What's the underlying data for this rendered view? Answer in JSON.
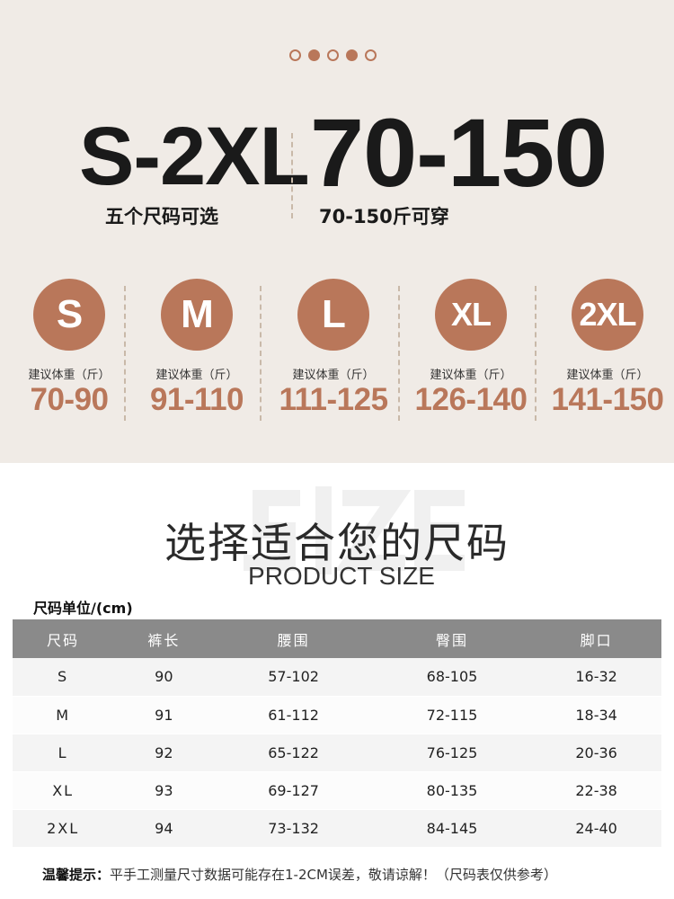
{
  "colors": {
    "accent": "#b9775a",
    "background": "#f0ebe6",
    "table_header": "#8a8a8a"
  },
  "carousel": {
    "count": 5,
    "active": [
      1,
      3
    ]
  },
  "hero": {
    "size_range": "S-2XL",
    "size_caption": "五个尺码可选",
    "weight_range": "70-150",
    "weight_caption": "70-150斤可穿"
  },
  "sizes": [
    {
      "size": "S",
      "label": "建议体重（斤）",
      "weight": "70-90"
    },
    {
      "size": "M",
      "label": "建议体重（斤）",
      "weight": "91-110"
    },
    {
      "size": "L",
      "label": "建议体重（斤）",
      "weight": "111-125"
    },
    {
      "size": "XL",
      "label": "建议体重（斤）",
      "weight": "126-140"
    },
    {
      "size": "2XL",
      "label": "建议体重（斤）",
      "weight": "141-150"
    }
  ],
  "chart_title": {
    "watermark": "SIZE",
    "title": "选择适合您的尺码",
    "subtitle": "PRODUCT SIZE"
  },
  "table": {
    "unit": "尺码单位/(cm)",
    "headers": [
      "尺码",
      "裤长",
      "腰围",
      "臀围",
      "脚口"
    ],
    "rows": [
      [
        "S",
        "90",
        "57-102",
        "68-105",
        "16-32"
      ],
      [
        "M",
        "91",
        "61-112",
        "72-115",
        "18-34"
      ],
      [
        "L",
        "92",
        "65-122",
        "76-125",
        "20-36"
      ],
      [
        "XL",
        "93",
        "69-127",
        "80-135",
        "22-38"
      ],
      [
        "2XL",
        "94",
        "73-132",
        "84-145",
        "24-40"
      ]
    ]
  },
  "note": {
    "label": "温馨提示：",
    "text": "平手工测量尺寸数据可能存在1-2CM误差，敬请谅解！（尺码表仅供参考）"
  }
}
